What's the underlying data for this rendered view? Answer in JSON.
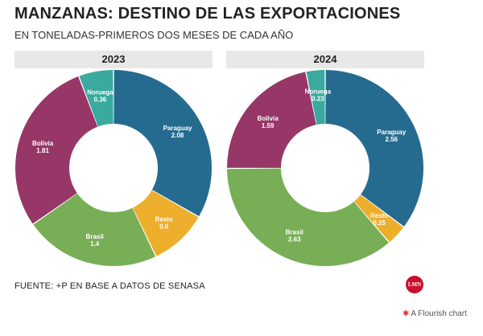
{
  "header": {
    "title": "MANZANAS: DESTINO DE LAS EXPORTACIONES",
    "subtitle": "EN TONELADAS-PRIMEROS DOS MESES DE CADA AÑO"
  },
  "footer": {
    "source": "FUENTE: +P EN BASE A DATOS DE SENASA",
    "logo_text": "LMN",
    "flourish_star": "✱",
    "flourish_label": "A Flourish chart"
  },
  "colors": {
    "Paraguay": "#256b90",
    "Resto": "#edae2c",
    "Brasil": "#78ae55",
    "Bolivia": "#973767",
    "Noruega": "#3aa99e"
  },
  "chart_data": [
    {
      "type": "pie",
      "title": "2023",
      "categories": [
        "Paraguay",
        "Resto",
        "Brasil",
        "Bolivia",
        "Noruega"
      ],
      "values": [
        2.08,
        0.6,
        1.4,
        1.81,
        0.36
      ],
      "value_labels": [
        "2.08",
        "0.6",
        "1.4",
        "1.81",
        "0.36"
      ]
    },
    {
      "type": "pie",
      "title": "2024",
      "categories": [
        "Paraguay",
        "Resto",
        "Brasil",
        "Bolivia",
        "Noruega"
      ],
      "values": [
        2.56,
        0.25,
        2.63,
        1.59,
        0.23
      ],
      "value_labels": [
        "2.56",
        "0.25",
        "2.63",
        "1.59",
        "0.23"
      ]
    }
  ]
}
